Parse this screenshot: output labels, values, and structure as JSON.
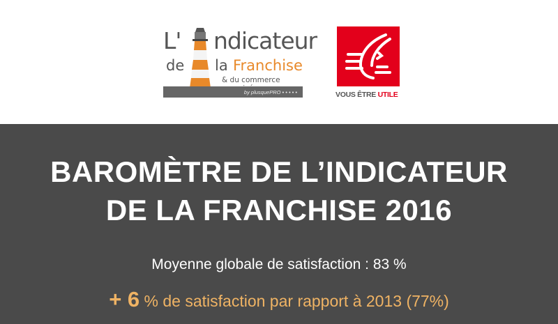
{
  "logos": {
    "indicateur": {
      "line1_prefix": "L'",
      "line1_rest": "ndicateur",
      "line2_de": "de",
      "line2_la": "la",
      "line2_franchise": "Franchise",
      "tagline": "& du commerce organisé",
      "byline": "by plusquePRO • • • • •"
    },
    "caisse_epargne": {
      "slogan_prefix": "VOUS ÊTRE ",
      "slogan_highlight": "UTILE",
      "brand_color": "#e3001b"
    }
  },
  "banner": {
    "title_line1": "BAROMÈTRE DE L’INDICATEUR",
    "title_line2": "DE LA FRANCHISE 2016",
    "average": "Moyenne globale de satisfaction : 83 %",
    "delta_value": "+ 6",
    "delta_text": " % de satisfaction par rapport à 2013 (77%)",
    "background_color": "#4a4a4a",
    "accent_color": "#efb364"
  }
}
